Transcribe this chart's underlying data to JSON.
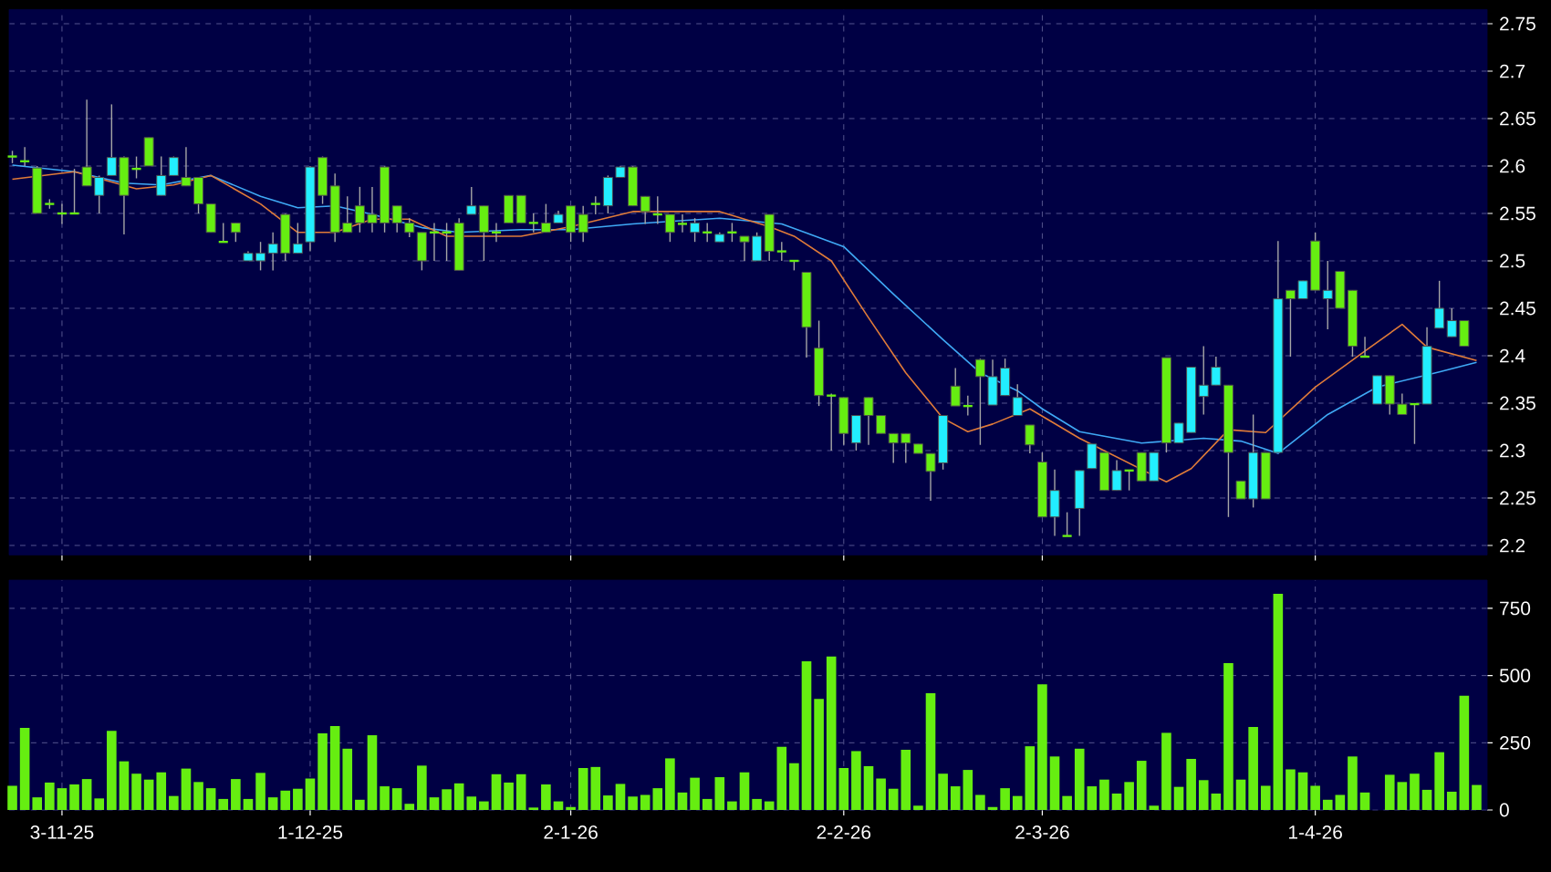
{
  "chart_data": [
    {
      "type": "candlestick",
      "categories": [
        null,
        null,
        null,
        null,
        null,
        null,
        null,
        null,
        null,
        null,
        null,
        null,
        null,
        null,
        null,
        null,
        null,
        null,
        null,
        null,
        null,
        null,
        null,
        null,
        null,
        null,
        null,
        null,
        null,
        null,
        null,
        null,
        null,
        null,
        null,
        null,
        null,
        null,
        null,
        null,
        null,
        null,
        null,
        null,
        null,
        null,
        null,
        null,
        null,
        null,
        null,
        null,
        null,
        null,
        null,
        null,
        null,
        null,
        null,
        null,
        null,
        null,
        null,
        null,
        null,
        null,
        null,
        null,
        null,
        null,
        null,
        null,
        null,
        null,
        null,
        null,
        null,
        null,
        null,
        null,
        null,
        null,
        null,
        null,
        null,
        null,
        null,
        null,
        null,
        null,
        null,
        null,
        null,
        null,
        null,
        null,
        null,
        null,
        null,
        null,
        null,
        null,
        null,
        null,
        null,
        null,
        null,
        null,
        null,
        null,
        null,
        null,
        null,
        null,
        null,
        null,
        null,
        null,
        null
      ],
      "ohlc": [
        [
          2.61,
          2.616,
          2.603,
          2.61
        ],
        [
          2.605,
          2.62,
          2.6,
          2.605
        ],
        [
          2.598,
          2.6,
          2.55,
          2.55
        ],
        [
          2.56,
          2.565,
          2.555,
          2.56
        ],
        [
          2.55,
          2.56,
          2.539,
          2.55
        ],
        [
          2.55,
          2.597,
          2.55,
          2.55
        ],
        [
          2.599,
          2.67,
          2.579,
          2.579
        ],
        [
          2.569,
          2.59,
          2.55,
          2.588
        ],
        [
          2.59,
          2.665,
          2.59,
          2.609
        ],
        [
          2.609,
          2.61,
          2.528,
          2.569
        ],
        [
          2.597,
          2.61,
          2.587,
          2.597
        ],
        [
          2.63,
          2.63,
          2.6,
          2.6
        ],
        [
          2.569,
          2.61,
          2.569,
          2.59
        ],
        [
          2.59,
          2.61,
          2.59,
          2.609
        ],
        [
          2.588,
          2.62,
          2.579,
          2.579
        ],
        [
          2.588,
          2.588,
          2.55,
          2.56
        ],
        [
          2.56,
          2.56,
          2.53,
          2.53
        ],
        [
          2.52,
          2.54,
          2.52,
          2.52
        ],
        [
          2.54,
          2.54,
          2.52,
          2.53
        ],
        [
          2.5,
          2.51,
          2.5,
          2.508
        ],
        [
          2.5,
          2.52,
          2.49,
          2.508
        ],
        [
          2.508,
          2.53,
          2.49,
          2.518
        ],
        [
          2.549,
          2.55,
          2.5,
          2.508
        ],
        [
          2.508,
          2.54,
          2.508,
          2.518
        ],
        [
          2.52,
          2.6,
          2.51,
          2.599
        ],
        [
          2.609,
          2.61,
          2.56,
          2.569
        ],
        [
          2.579,
          2.592,
          2.52,
          2.53
        ],
        [
          2.54,
          2.568,
          2.53,
          2.53
        ],
        [
          2.558,
          2.578,
          2.53,
          2.54
        ],
        [
          2.549,
          2.578,
          2.53,
          2.54
        ],
        [
          2.599,
          2.6,
          2.53,
          2.54
        ],
        [
          2.558,
          2.558,
          2.53,
          2.54
        ],
        [
          2.54,
          2.545,
          2.525,
          2.53
        ],
        [
          2.53,
          2.53,
          2.49,
          2.5
        ],
        [
          2.53,
          2.54,
          2.5,
          2.53
        ],
        [
          2.53,
          2.54,
          2.5,
          2.53
        ],
        [
          2.54,
          2.545,
          2.49,
          2.49
        ],
        [
          2.549,
          2.578,
          2.549,
          2.558
        ],
        [
          2.558,
          2.558,
          2.5,
          2.53
        ],
        [
          2.53,
          2.54,
          2.52,
          2.53
        ],
        [
          2.569,
          2.569,
          2.54,
          2.54
        ],
        [
          2.569,
          2.569,
          2.54,
          2.54
        ],
        [
          2.54,
          2.55,
          2.53,
          2.54
        ],
        [
          2.54,
          2.56,
          2.53,
          2.53
        ],
        [
          2.54,
          2.553,
          2.54,
          2.549
        ],
        [
          2.558,
          2.558,
          2.52,
          2.53
        ],
        [
          2.549,
          2.558,
          2.52,
          2.53
        ],
        [
          2.56,
          2.568,
          2.549,
          2.56
        ],
        [
          2.558,
          2.59,
          2.55,
          2.588
        ],
        [
          2.588,
          2.6,
          2.588,
          2.599
        ],
        [
          2.599,
          2.6,
          2.558,
          2.558
        ],
        [
          2.568,
          2.568,
          2.539,
          2.552
        ],
        [
          2.549,
          2.568,
          2.539,
          2.549
        ],
        [
          2.549,
          2.549,
          2.52,
          2.53
        ],
        [
          2.539,
          2.549,
          2.53,
          2.539
        ],
        [
          2.53,
          2.545,
          2.52,
          2.54
        ],
        [
          2.53,
          2.54,
          2.52,
          2.53
        ],
        [
          2.52,
          2.53,
          2.52,
          2.528
        ],
        [
          2.53,
          2.54,
          2.52,
          2.53
        ],
        [
          2.526,
          2.526,
          2.5,
          2.52
        ],
        [
          2.5,
          2.53,
          2.5,
          2.526
        ],
        [
          2.549,
          2.549,
          2.5,
          2.51
        ],
        [
          2.51,
          2.52,
          2.5,
          2.51
        ],
        [
          2.5,
          2.5,
          2.49,
          2.5
        ],
        [
          2.488,
          2.488,
          2.398,
          2.43
        ],
        [
          2.408,
          2.437,
          2.347,
          2.358
        ],
        [
          2.358,
          2.36,
          2.3,
          2.358
        ],
        [
          2.356,
          2.356,
          2.306,
          2.318
        ],
        [
          2.308,
          2.337,
          2.3,
          2.337
        ],
        [
          2.356,
          2.356,
          2.306,
          2.337
        ],
        [
          2.337,
          2.337,
          2.318,
          2.318
        ],
        [
          2.318,
          2.318,
          2.287,
          2.308
        ],
        [
          2.318,
          2.318,
          2.287,
          2.308
        ],
        [
          2.307,
          2.307,
          2.297,
          2.297
        ],
        [
          2.297,
          2.297,
          2.247,
          2.278
        ],
        [
          2.287,
          2.337,
          2.28,
          2.337
        ],
        [
          2.368,
          2.387,
          2.347,
          2.347
        ],
        [
          2.347,
          2.358,
          2.337,
          2.347
        ],
        [
          2.396,
          2.397,
          2.306,
          2.378
        ],
        [
          2.348,
          2.396,
          2.348,
          2.378
        ],
        [
          2.358,
          2.397,
          2.358,
          2.387
        ],
        [
          2.337,
          2.37,
          2.337,
          2.356
        ],
        [
          2.327,
          2.327,
          2.297,
          2.306
        ],
        [
          2.288,
          2.298,
          2.23,
          2.23
        ],
        [
          2.23,
          2.28,
          2.21,
          2.258
        ],
        [
          2.21,
          2.235,
          2.21,
          2.21
        ],
        [
          2.239,
          2.279,
          2.21,
          2.279
        ],
        [
          2.281,
          2.307,
          2.281,
          2.307
        ],
        [
          2.298,
          2.298,
          2.258,
          2.258
        ],
        [
          2.258,
          2.29,
          2.258,
          2.279
        ],
        [
          2.279,
          2.279,
          2.258,
          2.279
        ],
        [
          2.298,
          2.298,
          2.268,
          2.268
        ],
        [
          2.268,
          2.298,
          2.268,
          2.298
        ],
        [
          2.398,
          2.398,
          2.298,
          2.308
        ],
        [
          2.308,
          2.329,
          2.308,
          2.329
        ],
        [
          2.319,
          2.388,
          2.319,
          2.388
        ],
        [
          2.357,
          2.41,
          2.338,
          2.369
        ],
        [
          2.369,
          2.399,
          2.369,
          2.388
        ],
        [
          2.369,
          2.369,
          2.23,
          2.298
        ],
        [
          2.268,
          2.268,
          2.249,
          2.249
        ],
        [
          2.249,
          2.338,
          2.24,
          2.298
        ],
        [
          2.298,
          2.298,
          2.249,
          2.249
        ],
        [
          2.298,
          2.521,
          2.298,
          2.46
        ],
        [
          2.469,
          2.469,
          2.399,
          2.46
        ],
        [
          2.46,
          2.479,
          2.46,
          2.479
        ],
        [
          2.521,
          2.53,
          2.469,
          2.469
        ],
        [
          2.46,
          2.5,
          2.428,
          2.469
        ],
        [
          2.489,
          2.489,
          2.45,
          2.45
        ],
        [
          2.469,
          2.469,
          2.399,
          2.41
        ],
        [
          2.399,
          2.42,
          2.399,
          2.399
        ],
        [
          2.349,
          2.379,
          2.349,
          2.379
        ],
        [
          2.379,
          2.379,
          2.338,
          2.349
        ],
        [
          2.349,
          2.36,
          2.338,
          2.338
        ],
        [
          2.349,
          2.349,
          2.307,
          2.349
        ],
        [
          2.349,
          2.43,
          2.349,
          2.41
        ],
        [
          2.429,
          2.479,
          2.429,
          2.45
        ],
        [
          2.42,
          2.45,
          2.42,
          2.437
        ],
        [
          2.437,
          2.437,
          2.41,
          2.41
        ],
        null
      ],
      "colors": [
        "#66ee11",
        "#66ee11",
        "#66ee11",
        "#66ee11",
        "#66ee11",
        "#66ee11",
        "#66ee11",
        "#22eeff",
        "#22eeff",
        "#66ee11",
        "#66ee11",
        "#66ee11",
        "#22eeff",
        "#22eeff",
        "#66ee11",
        "#66ee11",
        "#66ee11",
        "#66ee11",
        "#66ee11",
        "#22eeff",
        "#22eeff",
        "#22eeff",
        "#66ee11",
        "#22eeff",
        "#22eeff",
        "#66ee11",
        "#66ee11",
        "#66ee11",
        "#66ee11",
        "#66ee11",
        "#66ee11",
        "#66ee11",
        "#66ee11",
        "#66ee11",
        "#66ee11",
        "#66ee11",
        "#66ee11",
        "#22eeff",
        "#66ee11",
        "#66ee11",
        "#66ee11",
        "#66ee11",
        "#66ee11",
        "#66ee11",
        "#22eeff",
        "#66ee11",
        "#66ee11",
        "#66ee11",
        "#22eeff",
        "#22eeff",
        "#66ee11",
        "#66ee11",
        "#66ee11",
        "#66ee11",
        "#66ee11",
        "#22eeff",
        "#66ee11",
        "#22eeff",
        "#66ee11",
        "#66ee11",
        "#22eeff",
        "#66ee11",
        "#66ee11",
        "#66ee11",
        "#66ee11",
        "#66ee11",
        "#66ee11",
        "#66ee11",
        "#22eeff",
        "#66ee11",
        "#66ee11",
        "#66ee11",
        "#66ee11",
        "#66ee11",
        "#66ee11",
        "#22eeff",
        "#66ee11",
        "#66ee11",
        "#66ee11",
        "#22eeff",
        "#22eeff",
        "#22eeff",
        "#66ee11",
        "#66ee11",
        "#22eeff",
        "#66ee11",
        "#22eeff",
        "#22eeff",
        "#66ee11",
        "#22eeff",
        "#66ee11",
        "#66ee11",
        "#22eeff",
        "#66ee11",
        "#22eeff",
        "#22eeff",
        "#22eeff",
        "#22eeff",
        "#66ee11",
        "#66ee11",
        "#22eeff",
        "#66ee11",
        "#22eeff",
        "#66ee11",
        "#22eeff",
        "#66ee11",
        "#22eeff",
        "#66ee11",
        "#66ee11",
        "#66ee11",
        "#22eeff",
        "#66ee11",
        "#66ee11",
        "#66ee11",
        "#22eeff",
        "#22eeff",
        "#22eeff",
        "#66ee11",
        "#66ee11"
      ],
      "series": [
        {
          "type": "line",
          "color": "#3fa9f5",
          "values": [
            2.601,
            null,
            null,
            null,
            null,
            2.594,
            null,
            null,
            null,
            2.582,
            null,
            null,
            2.58,
            null,
            null,
            null,
            2.59,
            null,
            null,
            null,
            2.568,
            null,
            null,
            2.556,
            null,
            null,
            2.558,
            null,
            null,
            2.549,
            null,
            null,
            null,
            2.535,
            null,
            null,
            2.53,
            null,
            null,
            null,
            null,
            2.533,
            null,
            null,
            null,
            2.533,
            null,
            null,
            null,
            null,
            2.539,
            null,
            null,
            null,
            null,
            null,
            null,
            2.545,
            null,
            null,
            null,
            null,
            2.539,
            null,
            null,
            null,
            null,
            2.515,
            null,
            null,
            null,
            2.465,
            null,
            null,
            null,
            2.417,
            null,
            null,
            2.382,
            null,
            null,
            2.363,
            null,
            2.344,
            null,
            null,
            2.32,
            null,
            null,
            null,
            null,
            2.308,
            null,
            null,
            null,
            null,
            2.313,
            null,
            null,
            2.31,
            null,
            null,
            2.297,
            null,
            null,
            null,
            2.338,
            null,
            null,
            null,
            2.367,
            null,
            null,
            null,
            null,
            2.383,
            null,
            null,
            2.393
          ]
        },
        {
          "type": "line",
          "color": "#e07b39",
          "values": [
            2.586,
            null,
            null,
            null,
            null,
            2.594,
            null,
            null,
            null,
            null,
            2.576,
            null,
            null,
            2.58,
            null,
            null,
            2.59,
            null,
            null,
            null,
            2.56,
            null,
            null,
            2.53,
            null,
            null,
            2.53,
            null,
            null,
            2.544,
            null,
            null,
            2.544,
            null,
            null,
            2.526,
            null,
            null,
            null,
            null,
            null,
            2.526,
            null,
            null,
            null,
            2.536,
            null,
            null,
            null,
            null,
            2.552,
            null,
            null,
            null,
            null,
            null,
            null,
            2.552,
            null,
            null,
            null,
            2.536,
            null,
            2.526,
            null,
            null,
            2.5,
            null,
            null,
            2.44,
            null,
            null,
            2.382,
            null,
            null,
            2.334,
            null,
            2.32,
            null,
            2.328,
            null,
            null,
            2.344,
            null,
            null,
            null,
            2.313,
            null,
            null,
            null,
            null,
            null,
            null,
            2.267,
            null,
            2.281,
            null,
            null,
            2.322,
            null,
            null,
            2.319,
            null,
            null,
            null,
            2.367,
            null,
            null,
            null,
            2.405,
            null,
            null,
            2.433,
            null,
            2.409,
            null,
            null,
            null,
            2.395
          ]
        }
      ],
      "ylim": [
        2.19,
        2.765
      ],
      "yticks": [
        2.2,
        2.25,
        2.3,
        2.35,
        2.4,
        2.45,
        2.5,
        2.55,
        2.6,
        2.65,
        2.7,
        2.75
      ],
      "grid": true,
      "tick_labels": "y"
    },
    {
      "type": "bar",
      "categories": [
        null,
        null,
        null,
        null,
        "3-11-25",
        null,
        null,
        null,
        null,
        null,
        null,
        null,
        null,
        null,
        null,
        null,
        null,
        null,
        null,
        null,
        null,
        null,
        null,
        null,
        "1-12-25",
        null,
        null,
        null,
        null,
        null,
        null,
        null,
        null,
        null,
        null,
        null,
        null,
        null,
        null,
        null,
        null,
        null,
        null,
        null,
        null,
        "2-1-26",
        null,
        null,
        null,
        null,
        null,
        null,
        null,
        null,
        null,
        null,
        null,
        null,
        null,
        null,
        null,
        null,
        null,
        null,
        null,
        null,
        null,
        "2-2-26",
        null,
        null,
        null,
        null,
        null,
        null,
        null,
        null,
        null,
        null,
        null,
        null,
        null,
        null,
        null,
        "2-3-26",
        null,
        null,
        null,
        null,
        null,
        null,
        null,
        null,
        null,
        null,
        null,
        null,
        null,
        null,
        null,
        null,
        null,
        null,
        null,
        null,
        null,
        "1-4-26",
        null,
        null,
        null,
        null,
        null,
        null,
        null,
        null,
        null,
        null,
        null,
        null,
        null
      ],
      "values": [
        90,
        305,
        47,
        102,
        81,
        95,
        115,
        43,
        294,
        181,
        135,
        113,
        140,
        52,
        154,
        104,
        81,
        41,
        115,
        41,
        138,
        47,
        72,
        79,
        117,
        285,
        312,
        228,
        38,
        278,
        88,
        81,
        23,
        165,
        47,
        77,
        99,
        50,
        32,
        133,
        102,
        133,
        9,
        95,
        32,
        11,
        156,
        160,
        54,
        97,
        50,
        56,
        81,
        192,
        65,
        120,
        41,
        122,
        32,
        140,
        41,
        32,
        235,
        174,
        553,
        413,
        571,
        156,
        219,
        163,
        117,
        79,
        224,
        16,
        434,
        135,
        88,
        149,
        56,
        11,
        81,
        52,
        237,
        467,
        199,
        52,
        228,
        88,
        113,
        61,
        104,
        183,
        16,
        287,
        86,
        190,
        111,
        61,
        546,
        113,
        309,
        90,
        804,
        151,
        140,
        90,
        38,
        56,
        199,
        65,
        0,
        131,
        104,
        135,
        75,
        215,
        68,
        425,
        93
      ],
      "color": "#66ee11",
      "ylim": [
        0,
        855
      ],
      "yticks": [
        0,
        250,
        500,
        750
      ],
      "grid": true
    }
  ]
}
